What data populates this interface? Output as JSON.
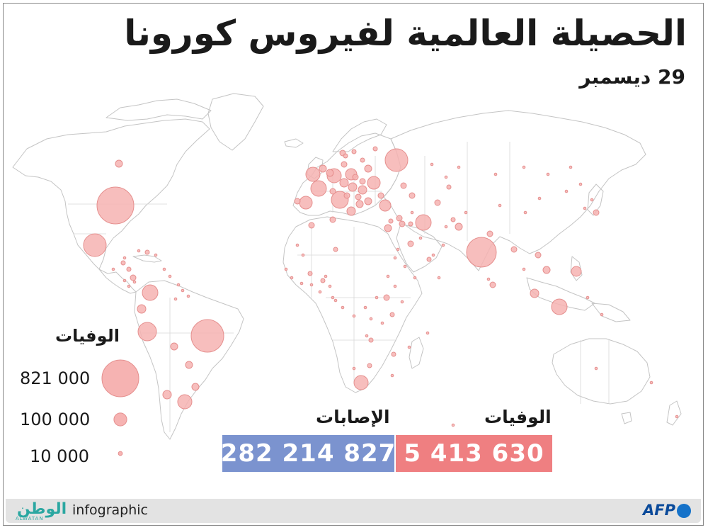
{
  "title": "الحصيلة العالمية لفيروس كورونا",
  "date": "29 ديسمبر",
  "legend": {
    "title": "الوفيات",
    "items": [
      {
        "label": "821 000",
        "value": 821000
      },
      {
        "label": "100 000",
        "value": 100000
      },
      {
        "label": "10 000",
        "value": 10000
      }
    ]
  },
  "stats": {
    "deaths_label": "الوفيات",
    "deaths_value": "5 413 630",
    "cases_label": "الإصابات",
    "cases_value": "282 214 827"
  },
  "footer": {
    "brand_ar": "الوطن",
    "brand_en": "ALWATAN",
    "infographic": "infographic",
    "agency": "AFP"
  },
  "colors": {
    "bubble_fill": "#f6b3b2",
    "bubble_stroke": "#e58f8e",
    "deaths_box": "#ef7f81",
    "cases_box": "#7b93cf",
    "map_stroke": "#c4c4c4",
    "brand": "#2aa7a1",
    "agency": "#1572c9"
  }
}
